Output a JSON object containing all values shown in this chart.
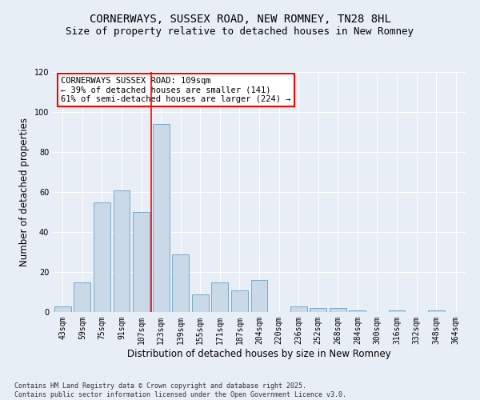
{
  "title": "CORNERWAYS, SUSSEX ROAD, NEW ROMNEY, TN28 8HL",
  "subtitle": "Size of property relative to detached houses in New Romney",
  "xlabel": "Distribution of detached houses by size in New Romney",
  "ylabel": "Number of detached properties",
  "categories": [
    "43sqm",
    "59sqm",
    "75sqm",
    "91sqm",
    "107sqm",
    "123sqm",
    "139sqm",
    "155sqm",
    "171sqm",
    "187sqm",
    "204sqm",
    "220sqm",
    "236sqm",
    "252sqm",
    "268sqm",
    "284sqm",
    "300sqm",
    "316sqm",
    "332sqm",
    "348sqm",
    "364sqm"
  ],
  "values": [
    3,
    15,
    55,
    61,
    50,
    94,
    29,
    9,
    15,
    11,
    16,
    0,
    3,
    2,
    2,
    1,
    0,
    1,
    0,
    1,
    0
  ],
  "bar_color": "#c9d9e8",
  "bar_edge_color": "#7aaac8",
  "vline_x_index": 4.5,
  "vline_color": "red",
  "annotation_title": "CORNERWAYS SUSSEX ROAD: 109sqm",
  "annotation_line1": "← 39% of detached houses are smaller (141)",
  "annotation_line2": "61% of semi-detached houses are larger (224) →",
  "annotation_box_color": "white",
  "annotation_box_edge": "red",
  "ylim": [
    0,
    120
  ],
  "yticks": [
    0,
    20,
    40,
    60,
    80,
    100,
    120
  ],
  "background_color": "#e8eef5",
  "plot_background": "#e8eef5",
  "footer": "Contains HM Land Registry data © Crown copyright and database right 2025.\nContains public sector information licensed under the Open Government Licence v3.0.",
  "title_fontsize": 10,
  "subtitle_fontsize": 9,
  "axis_label_fontsize": 8.5,
  "tick_fontsize": 7,
  "annotation_fontsize": 7.5,
  "footer_fontsize": 6
}
